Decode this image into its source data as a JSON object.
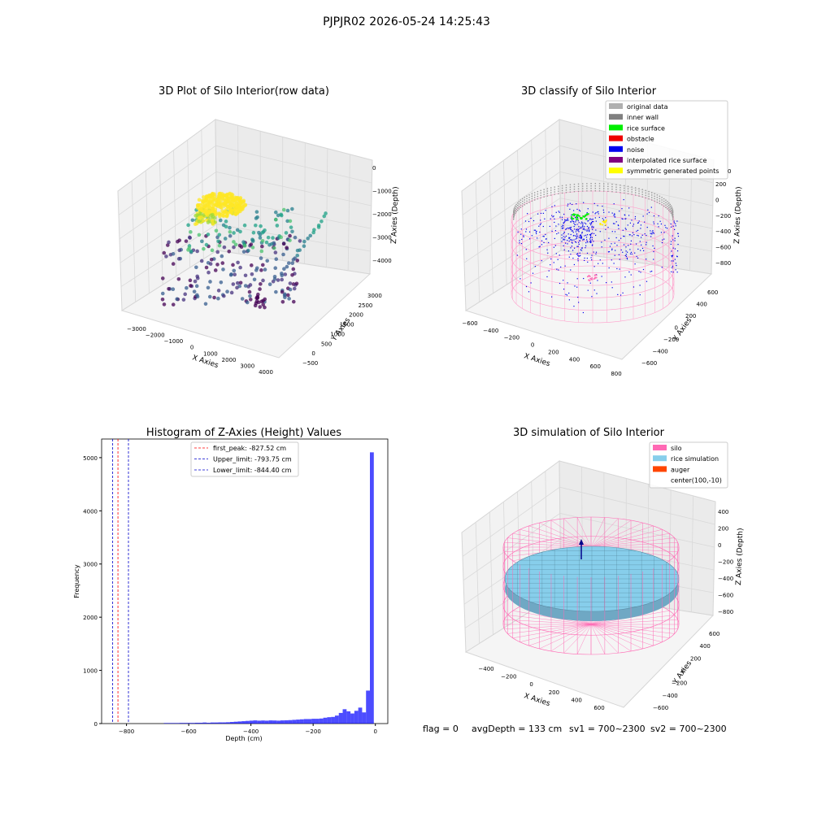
{
  "suptitle": "PJPJR02 2026-05-24 14:25:43",
  "panels": {
    "raw": {
      "title": "3D Plot of Silo Interior(row data)",
      "xlabel": "X Axies",
      "ylabel": "Y Axies",
      "zlabel": "Z Axies (Depth)",
      "xticks": [
        "−3000",
        "−2000",
        "−1000",
        "0",
        "1000",
        "2000",
        "3000",
        "4000"
      ],
      "yticks": [
        "−500",
        "0",
        "500",
        "1000",
        "1500",
        "2000",
        "2500",
        "3000"
      ],
      "zticks": [
        "0",
        "−1000",
        "−2000",
        "−3000",
        "−4000"
      ]
    },
    "classify": {
      "title": "3D classify of Silo Interior",
      "xlabel": "X Axies",
      "ylabel": "Y Axies",
      "zlabel": "Z Axies (Depth)",
      "xticks": [
        "−600",
        "−400",
        "−200",
        "0",
        "200",
        "400",
        "600",
        "800"
      ],
      "yticks": [
        "−600",
        "−400",
        "−200",
        "0",
        "200",
        "400",
        "600"
      ],
      "zticks": [
        "200",
        "0",
        "−200",
        "−400",
        "−600",
        "−800"
      ],
      "ztick_top": "0",
      "legend": [
        {
          "label": "original data",
          "color": "#b0b0b0"
        },
        {
          "label": "inner wall",
          "color": "#808080"
        },
        {
          "label": "rice surface",
          "color": "#00ee00"
        },
        {
          "label": "obstacle",
          "color": "#ee0000"
        },
        {
          "label": "noise",
          "color": "#0000ee"
        },
        {
          "label": "interpolated rice surface",
          "color": "#800080"
        },
        {
          "label": "symmetric generated points",
          "color": "#ffff00"
        }
      ]
    },
    "hist": {
      "title": "Histogram of Z-Axies (Height) Values",
      "xlabel": "Depth (cm)",
      "ylabel": "Frequency",
      "xticks": [
        "−800",
        "−600",
        "−400",
        "−200",
        "0"
      ],
      "yticks": [
        "0",
        "1000",
        "2000",
        "3000",
        "4000",
        "5000"
      ],
      "legend": [
        {
          "label": "first_peak: -827.52 cm",
          "color": "#ff0000"
        },
        {
          "label": "Upper_limit: -793.75 cm",
          "color": "#0000cc"
        },
        {
          "label": "Lower_limit: -844.40 cm",
          "color": "#0000cc"
        }
      ]
    },
    "sim": {
      "title": "3D simulation of Silo Interior",
      "xlabel": "X Axies",
      "ylabel": "Y Axies",
      "zlabel": "Z Axies (Depth)",
      "xticks": [
        "−400",
        "−200",
        "0",
        "200",
        "400",
        "600"
      ],
      "yticks": [
        "−600",
        "−400",
        "−200",
        "0",
        "200",
        "400",
        "600"
      ],
      "zticks": [
        "400",
        "200",
        "0",
        "−200",
        "−400",
        "−600",
        "−800"
      ],
      "legend": [
        {
          "label": "silo",
          "color": "#ff69b4"
        },
        {
          "label": "rice simulation",
          "color": "#87ceeb"
        },
        {
          "label": "auger",
          "color": "#ff4500"
        },
        {
          "label": "center(100,-10)",
          "color": ""
        }
      ]
    }
  },
  "status": {
    "flag": "flag = 0",
    "avg_depth": "avgDepth = 133 cm",
    "sv1": "sv1 = 700~2300",
    "sv2": "sv2 = 700~2300"
  },
  "chart_data": [
    {
      "type": "scatter",
      "title": "3D Plot of Silo Interior(row data)",
      "xlabel": "X Axies",
      "ylabel": "Y Axies",
      "zlabel": "Z Axies (Depth)",
      "xlim": [
        -3500,
        4500
      ],
      "ylim": [
        -700,
        3300
      ],
      "zlim": [
        -4600,
        200
      ],
      "colormap": "viridis by depth",
      "note_points": "point cloud with a dense yellow cluster near the top (z≈-1500) and scattered purple points near z≈-4000"
    },
    {
      "type": "scatter",
      "title": "3D classify of Silo Interior",
      "xlabel": "X Axies",
      "ylabel": "Y Axies",
      "zlabel": "Z Axies (Depth)",
      "xlim": [
        -650,
        850
      ],
      "ylim": [
        -700,
        700
      ],
      "zlim": [
        -950,
        350
      ],
      "series": [
        {
          "name": "original data"
        },
        {
          "name": "inner wall"
        },
        {
          "name": "rice surface"
        },
        {
          "name": "obstacle"
        },
        {
          "name": "noise"
        },
        {
          "name": "interpolated rice surface"
        },
        {
          "name": "symmetric generated points"
        }
      ]
    },
    {
      "type": "bar",
      "title": "Histogram of Z-Axies (Height) Values",
      "xlabel": "Depth (cm)",
      "ylabel": "Frequency",
      "xlim": [
        -880,
        40
      ],
      "ylim": [
        0,
        5350
      ],
      "bin_width": 12.5,
      "bins": [
        [
          -680,
          10
        ],
        [
          -667.5,
          10
        ],
        [
          -655,
          10
        ],
        [
          -642.5,
          10
        ],
        [
          -630,
          12
        ],
        [
          -617.5,
          12
        ],
        [
          -605,
          12
        ],
        [
          -592.5,
          12
        ],
        [
          -580,
          15
        ],
        [
          -567.5,
          15
        ],
        [
          -555,
          20
        ],
        [
          -542.5,
          15
        ],
        [
          -530,
          20
        ],
        [
          -517.5,
          20
        ],
        [
          -505,
          22
        ],
        [
          -492.5,
          22
        ],
        [
          -480,
          25
        ],
        [
          -467.5,
          30
        ],
        [
          -455,
          35
        ],
        [
          -442.5,
          40
        ],
        [
          -430,
          45
        ],
        [
          -417.5,
          50
        ],
        [
          -405,
          55
        ],
        [
          -392.5,
          60
        ],
        [
          -380,
          55
        ],
        [
          -367.5,
          58
        ],
        [
          -355,
          55
        ],
        [
          -342.5,
          60
        ],
        [
          -330,
          58
        ],
        [
          -317.5,
          55
        ],
        [
          -305,
          60
        ],
        [
          -292.5,
          62
        ],
        [
          -280,
          65
        ],
        [
          -267.5,
          70
        ],
        [
          -255,
          75
        ],
        [
          -242.5,
          80
        ],
        [
          -230,
          85
        ],
        [
          -217.5,
          85
        ],
        [
          -205,
          90
        ],
        [
          -192.5,
          90
        ],
        [
          -180,
          95
        ],
        [
          -167.5,
          110
        ],
        [
          -155,
          120
        ],
        [
          -142.5,
          125
        ],
        [
          -130,
          150
        ],
        [
          -117.5,
          200
        ],
        [
          -105,
          270
        ],
        [
          -92.5,
          230
        ],
        [
          -80,
          190
        ],
        [
          -67.5,
          240
        ],
        [
          -55,
          300
        ],
        [
          -42.5,
          210
        ],
        [
          -30,
          620
        ],
        [
          -17.5,
          5100
        ]
      ],
      "vlines": [
        {
          "name": "first_peak: -827.52 cm",
          "x": -827.52,
          "color": "#ff0000"
        },
        {
          "name": "Upper_limit: -793.75 cm",
          "x": -793.75,
          "color": "#0000cc"
        },
        {
          "name": "Lower_limit: -844.40 cm",
          "x": -844.4,
          "color": "#0000cc"
        }
      ]
    },
    {
      "type": "surface",
      "title": "3D simulation of Silo Interior",
      "xlabel": "X Axies",
      "ylabel": "Y Axies",
      "zlabel": "Z Axies (Depth)",
      "xlim": [
        -550,
        750
      ],
      "ylim": [
        -700,
        700
      ],
      "zlim": [
        -950,
        500
      ],
      "series": [
        {
          "name": "silo"
        },
        {
          "name": "rice simulation"
        },
        {
          "name": "auger"
        },
        {
          "name": "center(100,-10)"
        }
      ]
    }
  ]
}
